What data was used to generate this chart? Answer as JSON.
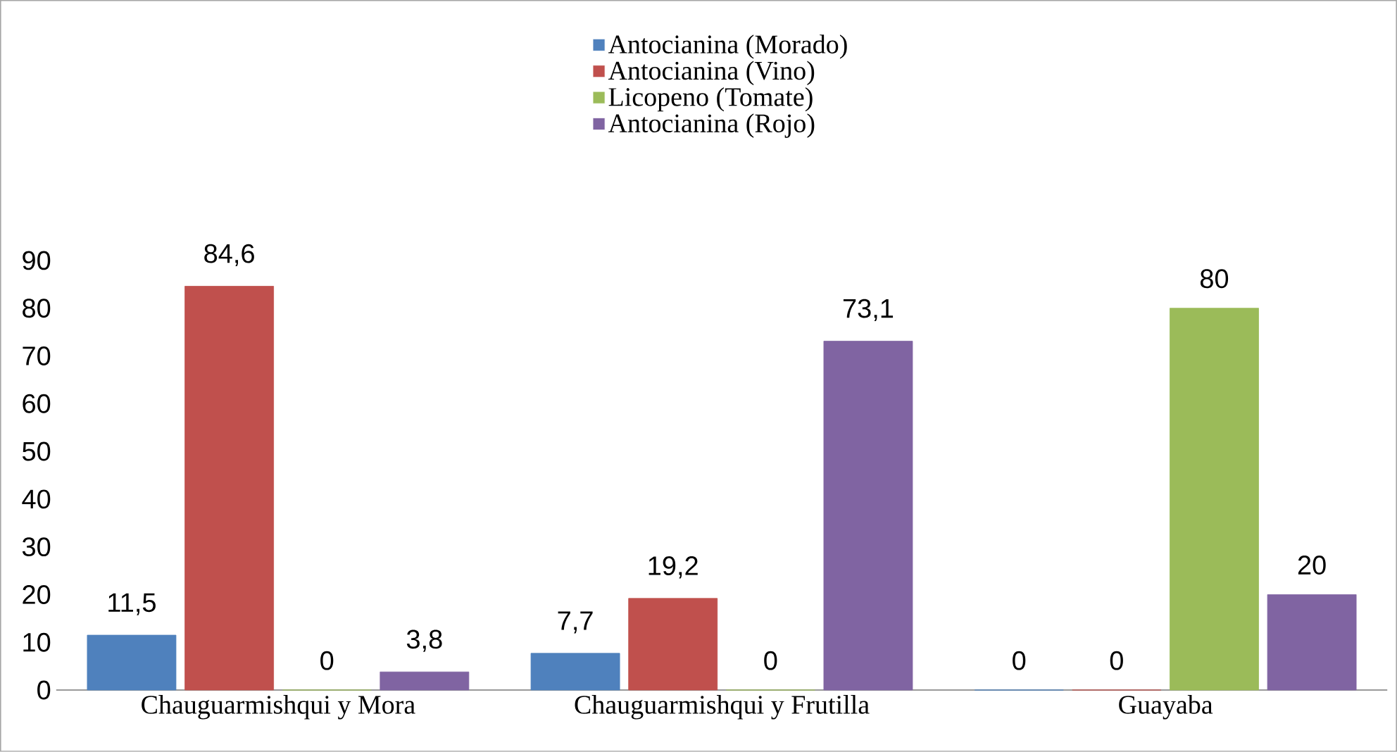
{
  "chart_data": {
    "type": "bar",
    "categories": [
      "Chauguarmishqui y Mora",
      "Chauguarmishqui y Frutilla",
      "Guayaba"
    ],
    "series": [
      {
        "name": "Antocianina (Morado)",
        "color": "#4f81bd",
        "values": [
          11.5,
          7.7,
          0
        ],
        "value_labels": [
          "11,5",
          "7,7",
          "0"
        ]
      },
      {
        "name": "Antocianina (Vino)",
        "color": "#c0504d",
        "values": [
          84.6,
          19.2,
          0
        ],
        "value_labels": [
          "84,6",
          "19,2",
          "0"
        ]
      },
      {
        "name": "Licopeno (Tomate)",
        "color": "#9bbb59",
        "values": [
          0,
          0,
          80
        ],
        "value_labels": [
          "0",
          "0",
          "80"
        ]
      },
      {
        "name": "Antocianina (Rojo)",
        "color": "#8064a2",
        "values": [
          3.8,
          73.1,
          20
        ],
        "value_labels": [
          "3,8",
          "73,1",
          "20"
        ]
      }
    ],
    "ylim": [
      0,
      90
    ],
    "yticks": [
      0,
      10,
      20,
      30,
      40,
      50,
      60,
      70,
      80,
      90
    ],
    "grid": false,
    "legend": "top"
  }
}
